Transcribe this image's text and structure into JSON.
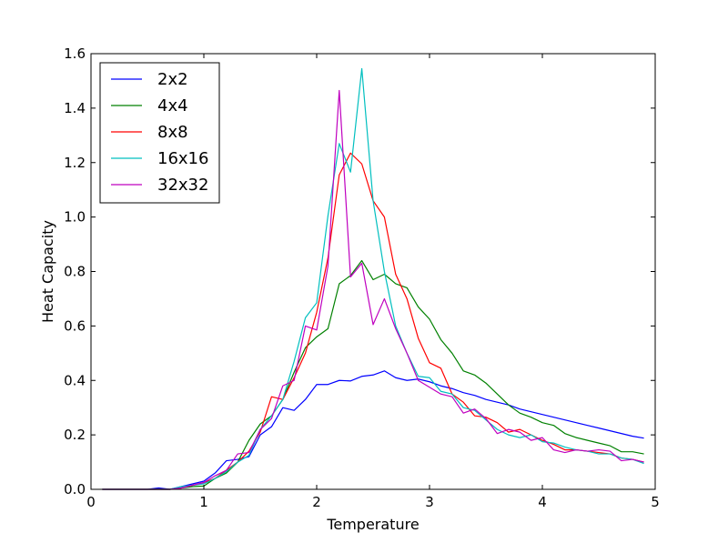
{
  "chart_data": {
    "type": "line",
    "title": "",
    "xlabel": "Temperature",
    "ylabel": "Heat Capacity",
    "xlim": [
      0,
      5
    ],
    "ylim": [
      0,
      1.6
    ],
    "xticks": [
      0,
      1,
      2,
      3,
      4,
      5
    ],
    "xtick_labels": [
      "0",
      "1",
      "2",
      "3",
      "4",
      "5"
    ],
    "yticks": [
      0.0,
      0.2,
      0.4,
      0.6,
      0.8,
      1.0,
      1.2,
      1.4,
      1.6
    ],
    "ytick_labels": [
      "0.0",
      "0.2",
      "0.4",
      "0.6",
      "0.8",
      "1.0",
      "1.2",
      "1.4",
      "1.6"
    ],
    "grid": false,
    "legend_position": "top-left",
    "x": [
      0.1,
      0.2,
      0.3,
      0.4,
      0.5,
      0.6,
      0.7,
      0.8,
      0.9,
      1.0,
      1.1,
      1.2,
      1.3,
      1.4,
      1.5,
      1.6,
      1.7,
      1.8,
      1.9,
      2.0,
      2.1,
      2.2,
      2.3,
      2.4,
      2.5,
      2.6,
      2.7,
      2.8,
      2.9,
      3.0,
      3.1,
      3.2,
      3.3,
      3.4,
      3.5,
      3.6,
      3.7,
      3.8,
      3.9,
      4.0,
      4.1,
      4.2,
      4.3,
      4.4,
      4.5,
      4.6,
      4.7,
      4.8,
      4.9
    ],
    "series": [
      {
        "name": "2x2",
        "color": "#0000ff",
        "values": [
          0.0,
          0.0,
          0.0,
          0.0,
          0.0,
          0.005,
          0.0,
          0.01,
          0.02,
          0.03,
          0.06,
          0.105,
          0.11,
          0.12,
          0.2,
          0.23,
          0.3,
          0.29,
          0.33,
          0.385,
          0.385,
          0.4,
          0.398,
          0.415,
          0.42,
          0.435,
          0.41,
          0.4,
          0.405,
          0.395,
          0.38,
          0.37,
          0.355,
          0.345,
          0.33,
          0.32,
          0.31,
          0.295,
          0.285,
          0.275,
          0.265,
          0.255,
          0.245,
          0.235,
          0.225,
          0.215,
          0.205,
          0.195,
          0.188
        ]
      },
      {
        "name": "4x4",
        "color": "#008000",
        "values": [
          0.0,
          0.0,
          0.0,
          0.0,
          0.0,
          0.0,
          0.0,
          0.005,
          0.01,
          0.012,
          0.04,
          0.06,
          0.1,
          0.18,
          0.24,
          0.27,
          0.33,
          0.43,
          0.52,
          0.56,
          0.59,
          0.755,
          0.785,
          0.84,
          0.77,
          0.79,
          0.755,
          0.74,
          0.67,
          0.625,
          0.55,
          0.5,
          0.435,
          0.42,
          0.39,
          0.35,
          0.31,
          0.28,
          0.265,
          0.245,
          0.235,
          0.205,
          0.19,
          0.18,
          0.17,
          0.16,
          0.138,
          0.138,
          0.13
        ]
      },
      {
        "name": "8x8",
        "color": "#ff0000",
        "values": [
          0.0,
          0.0,
          0.0,
          0.0,
          0.0,
          0.0,
          0.0,
          0.005,
          0.015,
          0.025,
          0.04,
          0.07,
          0.1,
          0.14,
          0.21,
          0.34,
          0.33,
          0.41,
          0.5,
          0.65,
          0.85,
          1.155,
          1.235,
          1.195,
          1.06,
          1.0,
          0.79,
          0.7,
          0.555,
          0.465,
          0.445,
          0.35,
          0.32,
          0.27,
          0.265,
          0.245,
          0.21,
          0.22,
          0.2,
          0.18,
          0.165,
          0.145,
          0.145,
          0.14,
          0.135,
          0.13,
          0.115,
          0.11,
          0.1
        ]
      },
      {
        "name": "16x16",
        "color": "#00bfbf",
        "values": [
          0.0,
          0.0,
          0.0,
          0.0,
          0.0,
          0.0,
          0.0,
          0.01,
          0.015,
          0.02,
          0.04,
          0.065,
          0.1,
          0.125,
          0.22,
          0.27,
          0.33,
          0.47,
          0.63,
          0.685,
          1.005,
          1.27,
          1.165,
          1.545,
          1.06,
          0.8,
          0.6,
          0.5,
          0.415,
          0.41,
          0.36,
          0.35,
          0.3,
          0.29,
          0.255,
          0.22,
          0.2,
          0.19,
          0.2,
          0.175,
          0.17,
          0.155,
          0.145,
          0.14,
          0.13,
          0.13,
          0.115,
          0.11,
          0.095
        ]
      },
      {
        "name": "32x32",
        "color": "#bf00bf",
        "values": [
          0.0,
          0.0,
          0.0,
          0.0,
          0.0,
          0.0,
          0.0,
          0.005,
          0.015,
          0.025,
          0.05,
          0.07,
          0.13,
          0.135,
          0.22,
          0.26,
          0.38,
          0.4,
          0.6,
          0.585,
          0.82,
          1.465,
          0.78,
          0.83,
          0.605,
          0.7,
          0.59,
          0.5,
          0.4,
          0.375,
          0.35,
          0.34,
          0.28,
          0.295,
          0.26,
          0.205,
          0.22,
          0.21,
          0.18,
          0.19,
          0.145,
          0.135,
          0.145,
          0.14,
          0.145,
          0.14,
          0.105,
          0.11,
          0.1
        ]
      }
    ]
  }
}
